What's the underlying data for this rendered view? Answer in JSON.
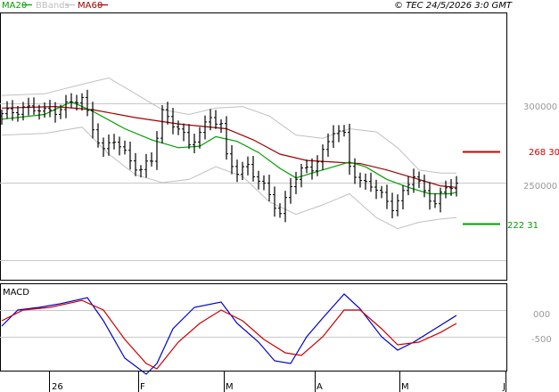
{
  "legend": {
    "ma20_label": "MA20",
    "bbands_label": "BBands",
    "ma60_label": "MA60"
  },
  "copyright": "© TEC 24/5/2026 3:0 GMT",
  "indicator_label": "MACD",
  "colors": {
    "price_bar": "#000000",
    "ma20": "#00a000",
    "ma60": "#a00000",
    "bbands": "#c0c0c0",
    "macd": "#0000cc",
    "signal": "#cc0000",
    "resistance": "#cc0000",
    "support": "#00a000",
    "grid": "#c8c8c8"
  },
  "chart_data": [
    {
      "type": "ohlc",
      "title": "",
      "price_axis": {
        "ticks": [
          300000,
          250000
        ],
        "tick_labels": [
          "300000",
          "250000"
        ]
      },
      "time_axis": {
        "months": [
          "26",
          "F",
          "M",
          "A",
          "M",
          "J"
        ]
      },
      "levels": [
        {
          "name": "resistance",
          "value": 268300,
          "label": "268 30"
        },
        {
          "name": "support",
          "value": 222310,
          "label": "222 31"
        }
      ],
      "close_series": [
        {
          "t": 0,
          "v": 292000
        },
        {
          "t": 4,
          "v": 298000
        },
        {
          "t": 8,
          "v": 294000
        },
        {
          "t": 12,
          "v": 299000
        },
        {
          "t": 15,
          "v": 302000
        },
        {
          "t": 17,
          "v": 286000
        },
        {
          "t": 19,
          "v": 270000
        },
        {
          "t": 21,
          "v": 276000
        },
        {
          "t": 24,
          "v": 265000
        },
        {
          "t": 26,
          "v": 258000
        },
        {
          "t": 28,
          "v": 263000
        },
        {
          "t": 30,
          "v": 295000
        },
        {
          "t": 33,
          "v": 285000
        },
        {
          "t": 35,
          "v": 272000
        },
        {
          "t": 37,
          "v": 282000
        },
        {
          "t": 39,
          "v": 293000
        },
        {
          "t": 41,
          "v": 285000
        },
        {
          "t": 42,
          "v": 265000
        },
        {
          "t": 44,
          "v": 257000
        },
        {
          "t": 46,
          "v": 262000
        },
        {
          "t": 48,
          "v": 250000
        },
        {
          "t": 50,
          "v": 242000
        },
        {
          "t": 52,
          "v": 231000
        },
        {
          "t": 54,
          "v": 249000
        },
        {
          "t": 56,
          "v": 256000
        },
        {
          "t": 58,
          "v": 260000
        },
        {
          "t": 60,
          "v": 270000
        },
        {
          "t": 62,
          "v": 282000
        },
        {
          "t": 64,
          "v": 279000
        },
        {
          "t": 65,
          "v": 262000
        },
        {
          "t": 67,
          "v": 251000
        },
        {
          "t": 69,
          "v": 248000
        },
        {
          "t": 71,
          "v": 241000
        },
        {
          "t": 73,
          "v": 236000
        },
        {
          "t": 75,
          "v": 243000
        },
        {
          "t": 77,
          "v": 254000
        },
        {
          "t": 79,
          "v": 244000
        },
        {
          "t": 81,
          "v": 239000
        },
        {
          "t": 83,
          "v": 245000
        },
        {
          "t": 85,
          "v": 249000
        }
      ],
      "ma20": [
        {
          "t": 0,
          "v": 290000
        },
        {
          "t": 8,
          "v": 293000
        },
        {
          "t": 13,
          "v": 301000
        },
        {
          "t": 17,
          "v": 295000
        },
        {
          "t": 23,
          "v": 284000
        },
        {
          "t": 28,
          "v": 277000
        },
        {
          "t": 33,
          "v": 272000
        },
        {
          "t": 37,
          "v": 273000
        },
        {
          "t": 40,
          "v": 279000
        },
        {
          "t": 44,
          "v": 276000
        },
        {
          "t": 48,
          "v": 269000
        },
        {
          "t": 52,
          "v": 259000
        },
        {
          "t": 55,
          "v": 253000
        },
        {
          "t": 58,
          "v": 256000
        },
        {
          "t": 62,
          "v": 260000
        },
        {
          "t": 65,
          "v": 263000
        },
        {
          "t": 68,
          "v": 260000
        },
        {
          "t": 72,
          "v": 252000
        },
        {
          "t": 76,
          "v": 247000
        },
        {
          "t": 80,
          "v": 243000
        },
        {
          "t": 84,
          "v": 243000
        },
        {
          "t": 85,
          "v": 244000
        }
      ],
      "ma60": [
        {
          "t": 0,
          "v": 297000
        },
        {
          "t": 10,
          "v": 298000
        },
        {
          "t": 17,
          "v": 296000
        },
        {
          "t": 25,
          "v": 291000
        },
        {
          "t": 33,
          "v": 287000
        },
        {
          "t": 42,
          "v": 284000
        },
        {
          "t": 47,
          "v": 277000
        },
        {
          "t": 52,
          "v": 268000
        },
        {
          "t": 57,
          "v": 264000
        },
        {
          "t": 62,
          "v": 263000
        },
        {
          "t": 67,
          "v": 262000
        },
        {
          "t": 72,
          "v": 258000
        },
        {
          "t": 77,
          "v": 253000
        },
        {
          "t": 82,
          "v": 248000
        },
        {
          "t": 85,
          "v": 247000
        }
      ],
      "bb_upper": [
        {
          "t": 0,
          "v": 305000
        },
        {
          "t": 8,
          "v": 306000
        },
        {
          "t": 15,
          "v": 312000
        },
        {
          "t": 20,
          "v": 316000
        },
        {
          "t": 25,
          "v": 306000
        },
        {
          "t": 30,
          "v": 296000
        },
        {
          "t": 35,
          "v": 293000
        },
        {
          "t": 40,
          "v": 297000
        },
        {
          "t": 45,
          "v": 298000
        },
        {
          "t": 50,
          "v": 292000
        },
        {
          "t": 55,
          "v": 280000
        },
        {
          "t": 60,
          "v": 278000
        },
        {
          "t": 65,
          "v": 284000
        },
        {
          "t": 70,
          "v": 282000
        },
        {
          "t": 74,
          "v": 272000
        },
        {
          "t": 78,
          "v": 258000
        },
        {
          "t": 82,
          "v": 256000
        },
        {
          "t": 85,
          "v": 256000
        }
      ],
      "bb_lower": [
        {
          "t": 0,
          "v": 280000
        },
        {
          "t": 8,
          "v": 281000
        },
        {
          "t": 15,
          "v": 285000
        },
        {
          "t": 20,
          "v": 268000
        },
        {
          "t": 25,
          "v": 255000
        },
        {
          "t": 30,
          "v": 250000
        },
        {
          "t": 35,
          "v": 252000
        },
        {
          "t": 40,
          "v": 260000
        },
        {
          "t": 45,
          "v": 254000
        },
        {
          "t": 50,
          "v": 238000
        },
        {
          "t": 55,
          "v": 230000
        },
        {
          "t": 60,
          "v": 236000
        },
        {
          "t": 65,
          "v": 243000
        },
        {
          "t": 70,
          "v": 228000
        },
        {
          "t": 74,
          "v": 221000
        },
        {
          "t": 78,
          "v": 225000
        },
        {
          "t": 82,
          "v": 227000
        },
        {
          "t": 85,
          "v": 228000
        }
      ]
    },
    {
      "type": "line",
      "title": "MACD",
      "y_ticks": [
        0,
        -500
      ],
      "tick_labels": [
        "000",
        "-500"
      ],
      "ylim": [
        -1250,
        350
      ],
      "series": [
        {
          "color_key": "macd",
          "points": [
            {
              "t": 0,
              "v": -300
            },
            {
              "t": 3,
              "v": 0
            },
            {
              "t": 7,
              "v": 50
            },
            {
              "t": 11,
              "v": 120
            },
            {
              "t": 16,
              "v": 230
            },
            {
              "t": 19,
              "v": -200
            },
            {
              "t": 23,
              "v": -900
            },
            {
              "t": 27,
              "v": -1200
            },
            {
              "t": 29,
              "v": -1000
            },
            {
              "t": 32,
              "v": -350
            },
            {
              "t": 36,
              "v": 50
            },
            {
              "t": 41,
              "v": 150
            },
            {
              "t": 44,
              "v": -250
            },
            {
              "t": 48,
              "v": -600
            },
            {
              "t": 51,
              "v": -950
            },
            {
              "t": 54,
              "v": -1000
            },
            {
              "t": 57,
              "v": -500
            },
            {
              "t": 60,
              "v": -150
            },
            {
              "t": 64,
              "v": 300
            },
            {
              "t": 67,
              "v": 20
            },
            {
              "t": 71,
              "v": -500
            },
            {
              "t": 74,
              "v": -750
            },
            {
              "t": 77,
              "v": -600
            },
            {
              "t": 81,
              "v": -350
            },
            {
              "t": 85,
              "v": -100
            }
          ]
        },
        {
          "color_key": "signal",
          "points": [
            {
              "t": 0,
              "v": -200
            },
            {
              "t": 4,
              "v": 0
            },
            {
              "t": 9,
              "v": 50
            },
            {
              "t": 15,
              "v": 180
            },
            {
              "t": 19,
              "v": 0
            },
            {
              "t": 23,
              "v": -550
            },
            {
              "t": 27,
              "v": -1000
            },
            {
              "t": 29,
              "v": -1100
            },
            {
              "t": 33,
              "v": -600
            },
            {
              "t": 37,
              "v": -250
            },
            {
              "t": 41,
              "v": 0
            },
            {
              "t": 45,
              "v": -200
            },
            {
              "t": 49,
              "v": -550
            },
            {
              "t": 53,
              "v": -800
            },
            {
              "t": 56,
              "v": -850
            },
            {
              "t": 60,
              "v": -500
            },
            {
              "t": 64,
              "v": 0
            },
            {
              "t": 67,
              "v": 0
            },
            {
              "t": 71,
              "v": -350
            },
            {
              "t": 74,
              "v": -650
            },
            {
              "t": 78,
              "v": -600
            },
            {
              "t": 82,
              "v": -420
            },
            {
              "t": 85,
              "v": -250
            }
          ]
        }
      ]
    }
  ]
}
